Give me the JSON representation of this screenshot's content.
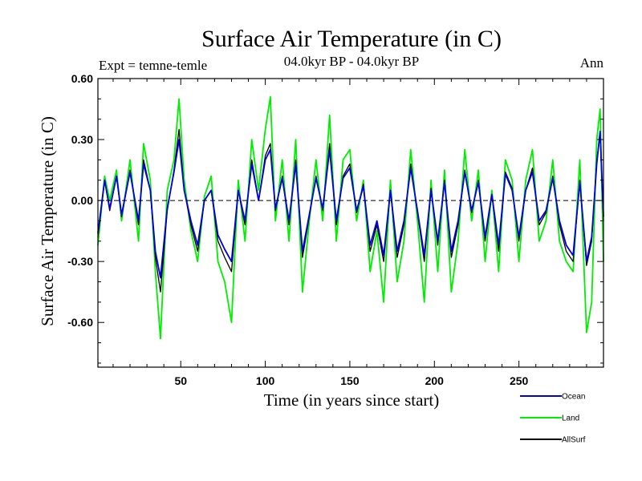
{
  "chart_data": {
    "type": "line",
    "title": "Surface Air Temperature (in C)",
    "subtitle_left": "Expt = temne-temle",
    "subtitle_center": "04.0kyr BP - 04.0kyr BP",
    "subtitle_right": "Ann",
    "xlabel": "Time (in years since start)",
    "ylabel": "Surface Air Temperature (in C)",
    "xlim": [
      1,
      300
    ],
    "ylim": [
      -0.82,
      0.6
    ],
    "xticks": [
      50,
      100,
      150,
      200,
      250
    ],
    "xtick_labels": [
      "50",
      "100",
      "150",
      "200",
      "250"
    ],
    "yticks": [
      0.6,
      0.3,
      0.0,
      -0.3,
      -0.6
    ],
    "ytick_labels": [
      "0.60",
      "0.30",
      "0.00",
      "-0.30",
      "-0.60"
    ],
    "reference_line": 0.0,
    "series": [
      {
        "name": "Land",
        "color": "#00ee00",
        "x": [
          1,
          5,
          8,
          12,
          15,
          20,
          25,
          28,
          32,
          35,
          38,
          42,
          46,
          49,
          52,
          56,
          60,
          64,
          68,
          72,
          76,
          80,
          84,
          88,
          92,
          96,
          100,
          103,
          106,
          110,
          114,
          118,
          122,
          126,
          130,
          134,
          138,
          142,
          146,
          150,
          154,
          158,
          162,
          166,
          170,
          174,
          178,
          182,
          186,
          190,
          194,
          198,
          202,
          206,
          210,
          214,
          218,
          222,
          226,
          230,
          234,
          238,
          242,
          246,
          250,
          254,
          258,
          262,
          266,
          270,
          274,
          278,
          282,
          286,
          290,
          293,
          296,
          298,
          300
        ],
        "values": [
          -0.22,
          0.12,
          0.0,
          0.15,
          -0.1,
          0.2,
          -0.2,
          0.28,
          0.1,
          -0.35,
          -0.68,
          0.05,
          0.2,
          0.5,
          0.1,
          -0.15,
          -0.3,
          0.02,
          0.12,
          -0.3,
          -0.4,
          -0.6,
          0.1,
          -0.2,
          0.3,
          0.05,
          0.35,
          0.51,
          -0.1,
          0.2,
          -0.2,
          0.3,
          -0.45,
          -0.1,
          0.2,
          -0.1,
          0.42,
          -0.2,
          0.2,
          0.25,
          -0.1,
          0.1,
          -0.35,
          -0.15,
          -0.5,
          0.1,
          -0.4,
          -0.2,
          0.25,
          -0.1,
          -0.5,
          0.1,
          -0.35,
          0.15,
          -0.45,
          -0.2,
          0.25,
          -0.1,
          0.15,
          -0.3,
          0.05,
          -0.35,
          0.2,
          0.1,
          -0.3,
          0.1,
          0.25,
          -0.2,
          -0.1,
          0.2,
          -0.2,
          -0.3,
          -0.35,
          0.2,
          -0.65,
          -0.5,
          0.3,
          0.45,
          -0.3
        ]
      },
      {
        "name": "AllSurf",
        "color": "#000000",
        "x": [
          1,
          5,
          8,
          12,
          15,
          20,
          25,
          28,
          32,
          35,
          38,
          42,
          46,
          49,
          52,
          56,
          60,
          64,
          68,
          72,
          76,
          80,
          84,
          88,
          92,
          96,
          100,
          103,
          106,
          110,
          114,
          118,
          122,
          126,
          130,
          134,
          138,
          142,
          146,
          150,
          154,
          158,
          162,
          166,
          170,
          174,
          178,
          182,
          186,
          190,
          194,
          198,
          202,
          206,
          210,
          214,
          218,
          222,
          226,
          230,
          234,
          238,
          242,
          246,
          250,
          254,
          258,
          262,
          266,
          270,
          274,
          278,
          282,
          286,
          290,
          293,
          296,
          298,
          300
        ],
        "values": [
          -0.18,
          0.1,
          -0.05,
          0.12,
          -0.08,
          0.15,
          -0.12,
          0.2,
          0.05,
          -0.28,
          -0.45,
          -0.05,
          0.15,
          0.35,
          0.05,
          -0.12,
          -0.25,
          0.0,
          0.05,
          -0.2,
          -0.28,
          -0.35,
          0.05,
          -0.12,
          0.2,
          0.0,
          0.22,
          0.28,
          -0.05,
          0.12,
          -0.12,
          0.2,
          -0.28,
          -0.08,
          0.12,
          -0.05,
          0.28,
          -0.12,
          0.12,
          0.18,
          -0.06,
          0.08,
          -0.25,
          -0.12,
          -0.3,
          0.05,
          -0.28,
          -0.12,
          0.18,
          -0.06,
          -0.3,
          0.06,
          -0.22,
          0.1,
          -0.28,
          -0.12,
          0.15,
          -0.06,
          0.1,
          -0.2,
          0.03,
          -0.25,
          0.14,
          0.06,
          -0.2,
          0.05,
          0.16,
          -0.12,
          -0.06,
          0.12,
          -0.12,
          -0.25,
          -0.3,
          0.1,
          -0.32,
          -0.2,
          0.2,
          0.32,
          -0.1
        ]
      },
      {
        "name": "Ocean",
        "color": "#0000dd",
        "x": [
          1,
          5,
          8,
          12,
          15,
          20,
          25,
          28,
          32,
          35,
          38,
          42,
          46,
          49,
          52,
          56,
          60,
          64,
          68,
          72,
          76,
          80,
          84,
          88,
          92,
          96,
          100,
          103,
          106,
          110,
          114,
          118,
          122,
          126,
          130,
          134,
          138,
          142,
          146,
          150,
          154,
          158,
          162,
          166,
          170,
          174,
          178,
          182,
          186,
          190,
          194,
          198,
          202,
          206,
          210,
          214,
          218,
          222,
          226,
          230,
          234,
          238,
          242,
          246,
          250,
          254,
          258,
          262,
          266,
          270,
          274,
          278,
          282,
          286,
          290,
          293,
          296,
          298,
          300
        ],
        "values": [
          -0.16,
          0.1,
          -0.04,
          0.12,
          -0.07,
          0.14,
          -0.1,
          0.18,
          0.05,
          -0.25,
          -0.38,
          -0.04,
          0.14,
          0.3,
          0.05,
          -0.1,
          -0.22,
          0.0,
          0.05,
          -0.17,
          -0.24,
          -0.3,
          0.05,
          -0.1,
          0.18,
          0.0,
          0.2,
          0.25,
          -0.04,
          0.11,
          -0.1,
          0.18,
          -0.25,
          -0.07,
          0.11,
          -0.04,
          0.25,
          -0.1,
          0.11,
          0.16,
          -0.05,
          0.07,
          -0.22,
          -0.1,
          -0.27,
          0.05,
          -0.25,
          -0.1,
          0.16,
          -0.05,
          -0.27,
          0.05,
          -0.2,
          0.09,
          -0.25,
          -0.1,
          0.14,
          -0.05,
          0.09,
          -0.18,
          0.03,
          -0.22,
          0.13,
          0.05,
          -0.18,
          0.05,
          0.14,
          -0.1,
          -0.05,
          0.11,
          -0.1,
          -0.22,
          -0.27,
          0.09,
          -0.3,
          -0.18,
          0.18,
          0.34,
          -0.08
        ]
      }
    ],
    "legend": [
      {
        "label": "Ocean",
        "color": "#0000dd"
      },
      {
        "label": "Land",
        "color": "#00ee00"
      },
      {
        "label": "AllSurf",
        "color": "#000000"
      }
    ],
    "legend_position": "bottom-right"
  }
}
